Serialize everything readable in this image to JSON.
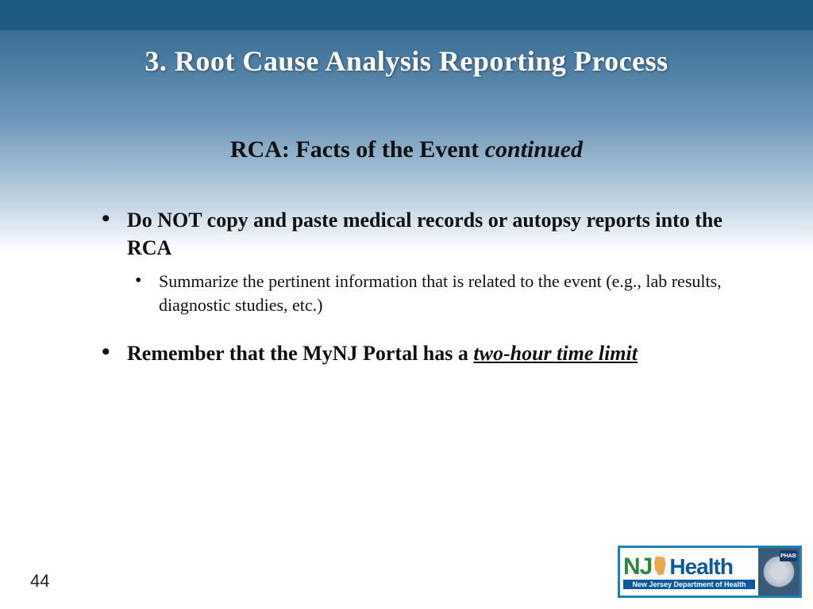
{
  "colors": {
    "top_bar": "#1f5a82",
    "gradient_top": "#3a6e95",
    "gradient_mid": "#6c96b8",
    "gradient_low": "#c8d8e6",
    "title_text": "#ffffff",
    "body_text": "#111111",
    "logo_border": "#1b83b8",
    "logo_green": "#2a8a3f",
    "logo_blue": "#0b5aa0",
    "nj_shape": "#e8a94a",
    "seal_bg": "#3a5a7a"
  },
  "typography": {
    "title_fontsize": 36,
    "subtitle_fontsize": 30,
    "bullet_fontsize": 26,
    "subbullet_fontsize": 22,
    "page_num_fontsize": 22,
    "font_family_serif": "Georgia, 'Times New Roman', serif",
    "font_family_sans": "Arial, Helvetica, sans-serif"
  },
  "title": "3. Root Cause Analysis Reporting Process",
  "subtitle_bold": "RCA: Facts of the Event ",
  "subtitle_italic": "continued",
  "bullets": [
    {
      "text": "Do NOT copy and paste medical records or autopsy reports into the RCA",
      "sub": [
        "Summarize the pertinent information that is related to the event (e.g., lab results, diagnostic studies, etc.)"
      ]
    },
    {
      "text_pre": "Remember that the MyNJ Portal has a ",
      "text_underline": "two-hour time limit"
    }
  ],
  "page_number": "44",
  "logo": {
    "nj": "NJ",
    "health": "Health",
    "subtitle": "New Jersey Department of Health",
    "badge": "PHAB"
  }
}
